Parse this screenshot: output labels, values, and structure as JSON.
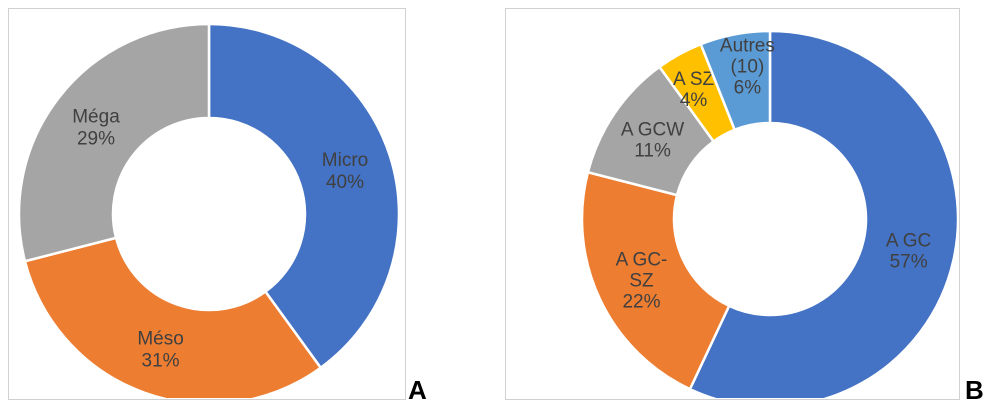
{
  "panels": [
    {
      "letter": "A"
    },
    {
      "letter": "B"
    }
  ],
  "chart_data": [
    {
      "type": "pie",
      "donut": true,
      "legend": "none",
      "slices": [
        {
          "label_lines": [
            "Micro",
            "40%"
          ],
          "value": 40,
          "color": "#4472C4"
        },
        {
          "label_lines": [
            "Méso",
            "31%"
          ],
          "value": 31,
          "color": "#ED7D31"
        },
        {
          "label_lines": [
            "Méga",
            "29%"
          ],
          "value": 29,
          "color": "#A5A5A5"
        }
      ]
    },
    {
      "type": "pie",
      "donut": true,
      "legend": "none",
      "slices": [
        {
          "label_lines": [
            "A GC",
            "57%"
          ],
          "value": 57,
          "color": "#4472C4"
        },
        {
          "label_lines": [
            "A GC-",
            "SZ",
            "22%"
          ],
          "value": 22,
          "color": "#ED7D31"
        },
        {
          "label_lines": [
            "A GCW",
            "11%"
          ],
          "value": 11,
          "color": "#A5A5A5"
        },
        {
          "label_lines": [
            "A SZ",
            "4%"
          ],
          "value": 4,
          "color": "#FFC000"
        },
        {
          "label_lines": [
            "Autres",
            "(10)",
            "6%"
          ],
          "value": 6,
          "color": "#5B9BD5"
        }
      ]
    }
  ]
}
